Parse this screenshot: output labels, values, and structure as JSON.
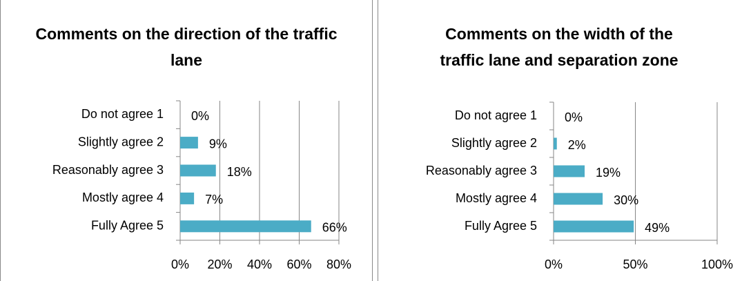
{
  "chart_data": [
    {
      "type": "bar",
      "orientation": "horizontal",
      "title": "Comments on the direction of the traffic lane",
      "categories": [
        "Do not agree 1",
        "Slightly agree 2",
        "Reasonably agree 3",
        "Mostly agree 4",
        "Fully Agree 5"
      ],
      "values": [
        0,
        9,
        18,
        7,
        66
      ],
      "value_labels": [
        "0%",
        "9%",
        "18%",
        "7%",
        "66%"
      ],
      "color": "#4bacc6",
      "xlim": [
        0,
        80
      ],
      "xticks": [
        {
          "value": 0,
          "label": "0%"
        },
        {
          "value": 20,
          "label": "20%"
        },
        {
          "value": 40,
          "label": "40%"
        },
        {
          "value": 60,
          "label": "60%"
        },
        {
          "value": 80,
          "label": "80%"
        }
      ],
      "grid": true
    },
    {
      "type": "bar",
      "orientation": "horizontal",
      "title": "Comments on the width of the traffic lane and separation zone",
      "categories": [
        "Do not agree 1",
        "Slightly agree 2",
        "Reasonably agree 3",
        "Mostly agree 4",
        "Fully Agree 5"
      ],
      "values": [
        0,
        2,
        19,
        30,
        49
      ],
      "value_labels": [
        "0%",
        "2%",
        "19%",
        "30%",
        "49%"
      ],
      "color": "#4bacc6",
      "xlim": [
        0,
        100
      ],
      "xticks": [
        {
          "value": 0,
          "label": "0%"
        },
        {
          "value": 50,
          "label": "50%"
        },
        {
          "value": 100,
          "label": "100%"
        }
      ],
      "grid": true
    }
  ]
}
